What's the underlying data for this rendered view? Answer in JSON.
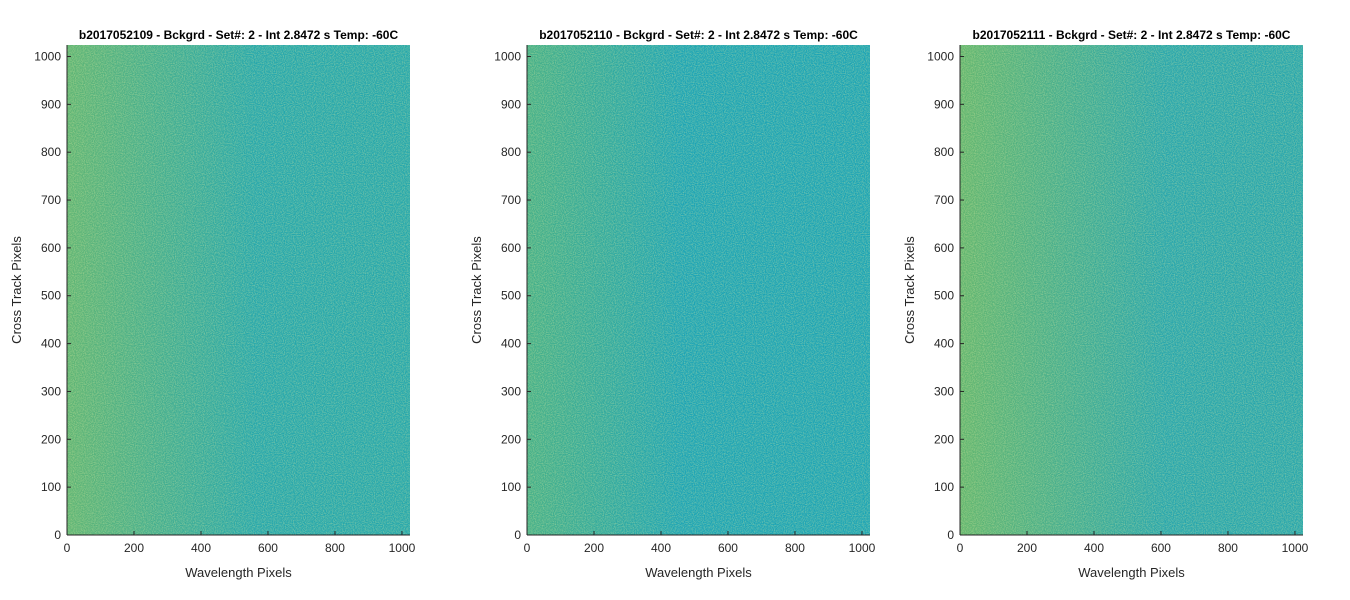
{
  "chart_data": [
    {
      "type": "heatmap",
      "title": "b2017052109 - Bckgrd - Set#: 2 - Int 2.8472 s Temp: -60C",
      "xlabel": "Wavelength Pixels",
      "ylabel": "Cross Track Pixels",
      "xlim": [
        0,
        1024
      ],
      "ylim": [
        0,
        1024
      ],
      "xticks": [
        0,
        200,
        400,
        600,
        800,
        1000
      ],
      "yticks": [
        0,
        100,
        200,
        300,
        400,
        500,
        600,
        700,
        800,
        900,
        1000
      ],
      "colors": {
        "left": "#5fb575",
        "right": "#25a7ad"
      },
      "gradient_strength": 0.55
    },
    {
      "type": "heatmap",
      "title": "b2017052110 - Bckgrd - Set#: 2 - Int 2.8472 s Temp: -60C",
      "xlabel": "Wavelength Pixels",
      "ylabel": "Cross Track Pixels",
      "xlim": [
        0,
        1024
      ],
      "ylim": [
        0,
        1024
      ],
      "xticks": [
        0,
        200,
        400,
        600,
        800,
        1000
      ],
      "yticks": [
        0,
        100,
        200,
        300,
        400,
        500,
        600,
        700,
        800,
        900,
        1000
      ],
      "colors": {
        "left": "#45b089",
        "right": "#1ca4b6"
      },
      "gradient_strength": 0.45
    },
    {
      "type": "heatmap",
      "title": "b2017052111 - Bckgrd - Set#: 2 - Int 2.8472 s Temp: -60C",
      "xlabel": "Wavelength Pixels",
      "ylabel": "Cross Track Pixels",
      "xlim": [
        0,
        1024
      ],
      "ylim": [
        0,
        1024
      ],
      "xticks": [
        0,
        200,
        400,
        600,
        800,
        1000
      ],
      "yticks": [
        0,
        100,
        200,
        300,
        400,
        500,
        600,
        700,
        800,
        900,
        1000
      ],
      "colors": {
        "left": "#62b670",
        "right": "#27a6ae"
      },
      "gradient_strength": 0.6
    }
  ]
}
